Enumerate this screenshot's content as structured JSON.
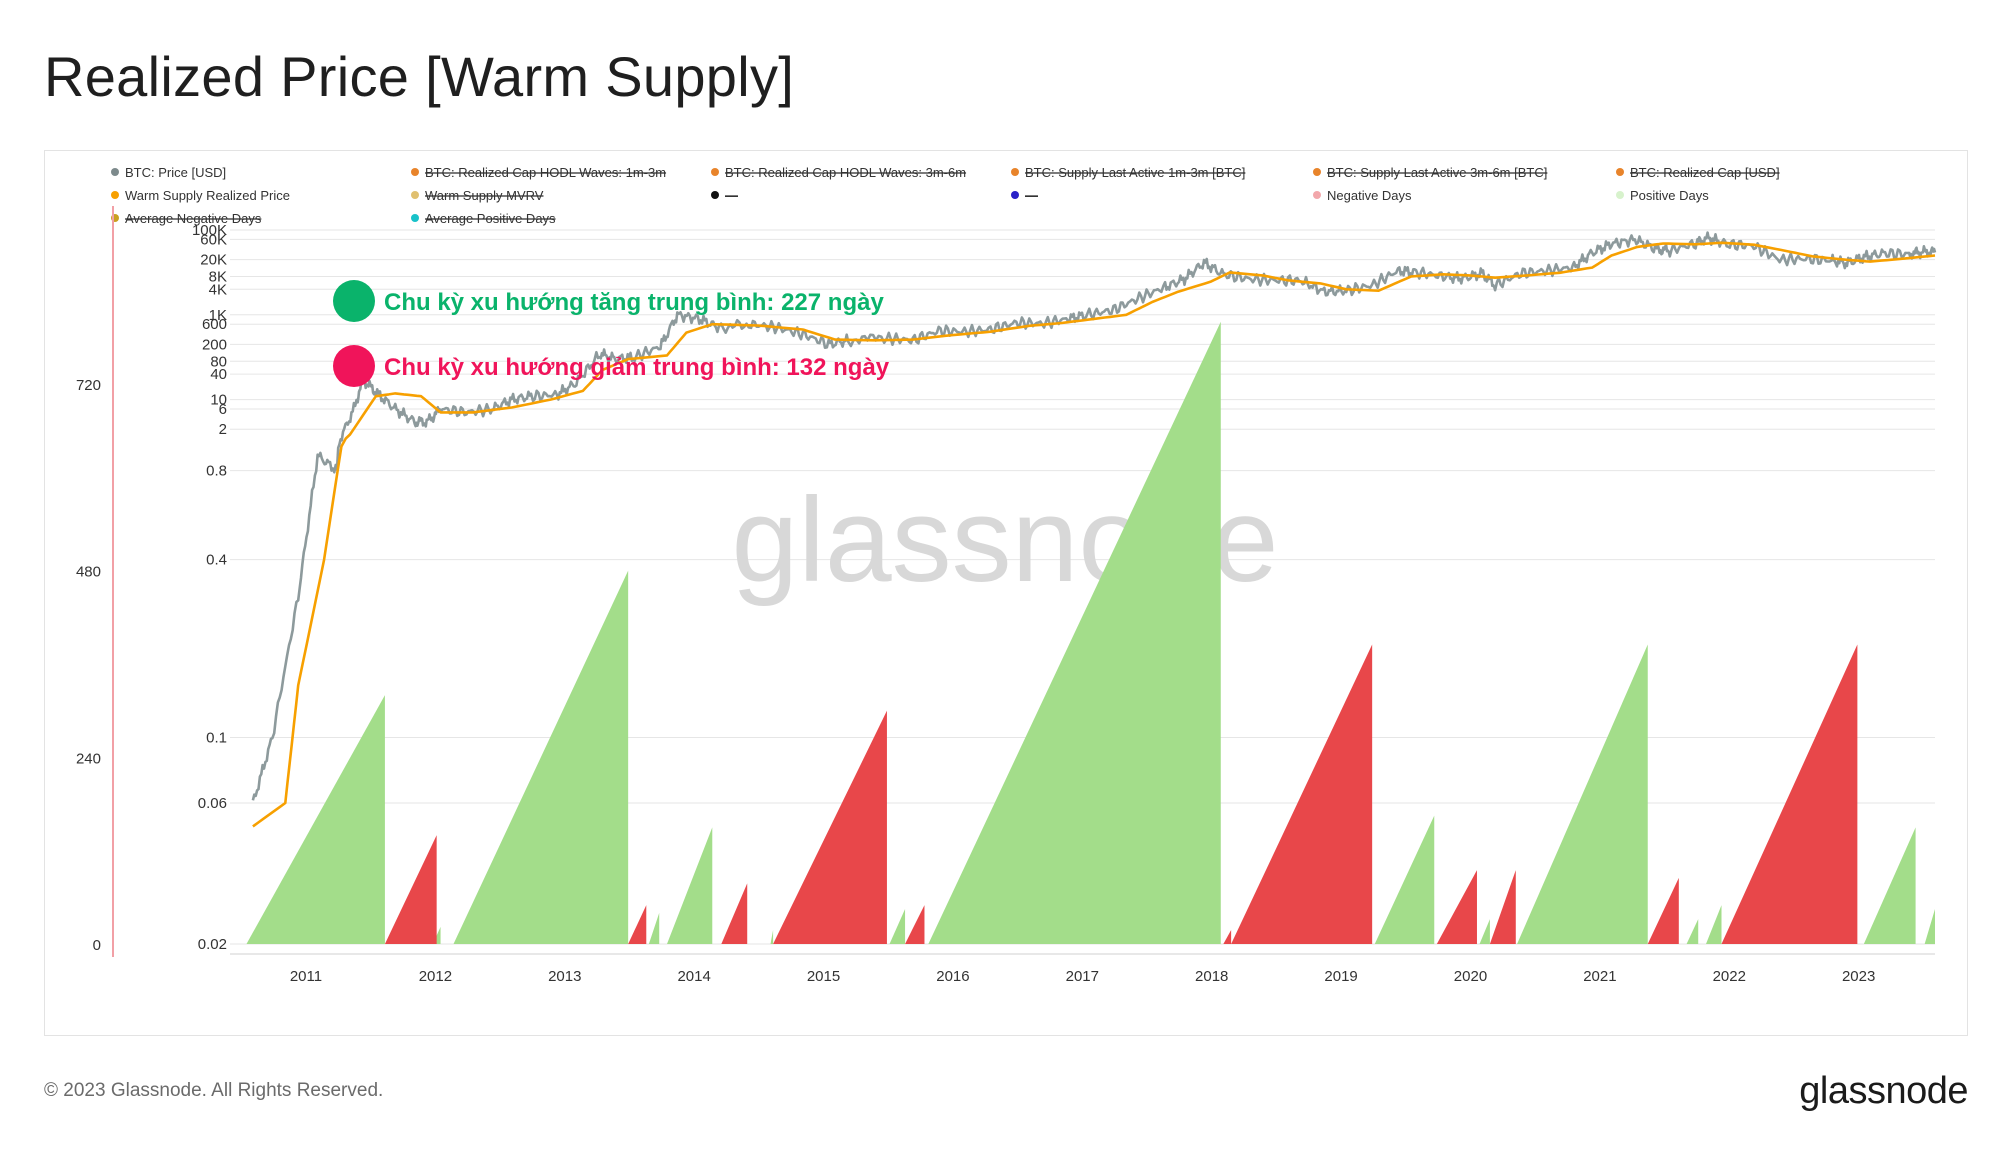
{
  "title": "Realized Price [Warm Supply]",
  "footer": {
    "copyright": "© 2023 Glassnode. All Rights Reserved.",
    "logo": "glassnode"
  },
  "watermark": "glassnode",
  "colors": {
    "price": "#8d9a9c",
    "realized": "#f7a000",
    "positive_fill": "#a3dd8a",
    "negative_fill": "#e8474a",
    "accent_green": "#0ab36b",
    "accent_red": "#f0145a",
    "grid": "#e6e6e6"
  },
  "legend": [
    {
      "label": "BTC: Price [USD]",
      "color": "#7d8a8c",
      "strike": false
    },
    {
      "label": "BTC: Realized Cap HODL Waves: 1m-3m",
      "color": "#e8842b",
      "strike": true
    },
    {
      "label": "BTC: Realized Cap HODL Waves: 3m-6m",
      "color": "#e8842b",
      "strike": true
    },
    {
      "label": "BTC: Supply Last Active 1m-3m [BTC]",
      "color": "#e8842b",
      "strike": true
    },
    {
      "label": "BTC: Supply Last Active 3m-6m [BTC]",
      "color": "#e8842b",
      "strike": true
    },
    {
      "label": "BTC: Realized Cap [USD]",
      "color": "#e8842b",
      "strike": true
    },
    {
      "label": "Warm Supply Realized Price",
      "color": "#f7a000",
      "strike": false
    },
    {
      "label": "Warm Supply MVRV",
      "color": "#e0c070",
      "strike": true
    },
    {
      "label": "—",
      "color": "#111111",
      "strike": true
    },
    {
      "label": "—",
      "color": "#2a22c8",
      "strike": true
    },
    {
      "label": "Negative Days",
      "color": "#f2a7ab",
      "strike": false
    },
    {
      "label": "Positive Days",
      "color": "#d7f2cc",
      "strike": false
    },
    {
      "label": "Average Negative Days",
      "color": "#c9a020",
      "strike": true
    },
    {
      "label": "Average Positive Days",
      "color": "#19c2c9",
      "strike": true
    }
  ],
  "annotations": {
    "uptrend": "Chu kỳ xu hướng tăng trung bình: 227 ngày",
    "downtrend": "Chu kỳ xu hướng giảm trung bình: 132 ngày"
  },
  "chart_data": {
    "type": "line",
    "x_axis": {
      "ticks": [
        "2011",
        "2012",
        "2013",
        "2014",
        "2015",
        "2016",
        "2017",
        "2018",
        "2019",
        "2020",
        "2021",
        "2022",
        "2023"
      ]
    },
    "y_axis_left": {
      "ticks": [
        "100K",
        "60K",
        "20K",
        "8K",
        "4K",
        "1K",
        "600",
        "200",
        "80",
        "40",
        "10",
        "6",
        "2",
        "0.8",
        "0.4",
        "0.1",
        "0.06",
        "0.02"
      ],
      "scale": "log"
    },
    "y_axis_right": {
      "ticks": [
        "720",
        "480",
        "240",
        "0"
      ],
      "range": [
        0,
        1000
      ]
    },
    "series": [
      {
        "name": "BTC: Price [USD]",
        "values": [
          [
            2010.6,
            0.06
          ],
          [
            2010.75,
            0.1
          ],
          [
            2010.95,
            0.3
          ],
          [
            2011.1,
            0.9
          ],
          [
            2011.25,
            0.8
          ],
          [
            2011.38,
            6
          ],
          [
            2011.45,
            30
          ],
          [
            2011.55,
            15
          ],
          [
            2011.7,
            6
          ],
          [
            2011.85,
            3
          ],
          [
            2011.95,
            3
          ],
          [
            2012.05,
            6
          ],
          [
            2012.25,
            5
          ],
          [
            2012.45,
            6
          ],
          [
            2012.6,
            10
          ],
          [
            2012.75,
            12
          ],
          [
            2012.95,
            13
          ],
          [
            2013.1,
            25
          ],
          [
            2013.28,
            120
          ],
          [
            2013.4,
            90
          ],
          [
            2013.55,
            100
          ],
          [
            2013.75,
            180
          ],
          [
            2013.88,
            1000
          ],
          [
            2014.05,
            800
          ],
          [
            2014.2,
            500
          ],
          [
            2014.45,
            600
          ],
          [
            2014.65,
            500
          ],
          [
            2014.85,
            350
          ],
          [
            2015.05,
            200
          ],
          [
            2015.2,
            250
          ],
          [
            2015.5,
            280
          ],
          [
            2015.7,
            250
          ],
          [
            2015.9,
            420
          ],
          [
            2016.1,
            400
          ],
          [
            2016.3,
            450
          ],
          [
            2016.5,
            650
          ],
          [
            2016.7,
            620
          ],
          [
            2016.9,
            800
          ],
          [
            2017.05,
            1000
          ],
          [
            2017.25,
            1300
          ],
          [
            2017.45,
            2500
          ],
          [
            2017.65,
            4500
          ],
          [
            2017.8,
            7000
          ],
          [
            2017.95,
            17000
          ],
          [
            2018.1,
            9000
          ],
          [
            2018.3,
            7000
          ],
          [
            2018.5,
            6500
          ],
          [
            2018.7,
            6400
          ],
          [
            2018.88,
            3500
          ],
          [
            2019.05,
            3700
          ],
          [
            2019.25,
            5000
          ],
          [
            2019.45,
            11000
          ],
          [
            2019.6,
            10000
          ],
          [
            2019.8,
            8000
          ],
          [
            2019.95,
            7200
          ],
          [
            2020.1,
            9500
          ],
          [
            2020.2,
            5000
          ],
          [
            2020.4,
            9500
          ],
          [
            2020.6,
            11000
          ],
          [
            2020.8,
            13000
          ],
          [
            2020.95,
            29000
          ],
          [
            2021.1,
            47000
          ],
          [
            2021.28,
            60000
          ],
          [
            2021.45,
            35000
          ],
          [
            2021.55,
            33000
          ],
          [
            2021.75,
            48000
          ],
          [
            2021.85,
            65000
          ],
          [
            2022.0,
            46000
          ],
          [
            2022.2,
            42000
          ],
          [
            2022.4,
            20000
          ],
          [
            2022.6,
            21000
          ],
          [
            2022.8,
            19000
          ],
          [
            2022.92,
            16500
          ],
          [
            2023.05,
            23000
          ],
          [
            2023.2,
            28000
          ],
          [
            2023.4,
            27000
          ],
          [
            2023.5,
            30500
          ],
          [
            2023.6,
            29500
          ]
        ]
      },
      {
        "name": "Warm Supply Realized Price",
        "values": [
          [
            2010.6,
            0.05
          ],
          [
            2010.85,
            0.06
          ],
          [
            2010.95,
            0.15
          ],
          [
            2011.15,
            0.4
          ],
          [
            2011.35,
            1.5
          ],
          [
            2011.55,
            12
          ],
          [
            2011.7,
            14
          ],
          [
            2011.9,
            12
          ],
          [
            2012.05,
            5
          ],
          [
            2012.3,
            5
          ],
          [
            2012.6,
            6.5
          ],
          [
            2012.9,
            10
          ],
          [
            2013.15,
            16
          ],
          [
            2013.3,
            50
          ],
          [
            2013.5,
            90
          ],
          [
            2013.8,
            110
          ],
          [
            2013.95,
            380
          ],
          [
            2014.15,
            600
          ],
          [
            2014.5,
            560
          ],
          [
            2014.85,
            450
          ],
          [
            2015.1,
            260
          ],
          [
            2015.4,
            250
          ],
          [
            2015.7,
            260
          ],
          [
            2015.95,
            320
          ],
          [
            2016.3,
            400
          ],
          [
            2016.6,
            550
          ],
          [
            2016.85,
            640
          ],
          [
            2017.1,
            800
          ],
          [
            2017.35,
            1000
          ],
          [
            2017.55,
            2000
          ],
          [
            2017.75,
            3500
          ],
          [
            2018.0,
            6000
          ],
          [
            2018.15,
            10000
          ],
          [
            2018.4,
            8500
          ],
          [
            2018.6,
            6500
          ],
          [
            2018.85,
            5500
          ],
          [
            2019.05,
            4000
          ],
          [
            2019.3,
            3700
          ],
          [
            2019.55,
            8000
          ],
          [
            2019.8,
            9000
          ],
          [
            2020.0,
            8500
          ],
          [
            2020.2,
            7500
          ],
          [
            2020.45,
            8500
          ],
          [
            2020.7,
            9800
          ],
          [
            2020.95,
            13000
          ],
          [
            2021.1,
            25000
          ],
          [
            2021.3,
            40000
          ],
          [
            2021.5,
            48000
          ],
          [
            2021.75,
            46000
          ],
          [
            2021.95,
            50000
          ],
          [
            2022.2,
            45000
          ],
          [
            2022.45,
            32000
          ],
          [
            2022.65,
            24000
          ],
          [
            2022.9,
            20000
          ],
          [
            2023.1,
            18000
          ],
          [
            2023.35,
            21000
          ],
          [
            2023.6,
            25000
          ]
        ]
      },
      {
        "name": "Positive Days",
        "values": [
          [
            2010.55,
            2011.62,
            320
          ],
          [
            2011.99,
            2012.05,
            22
          ],
          [
            2012.15,
            2013.5,
            480
          ],
          [
            2013.66,
            2013.74,
            40
          ],
          [
            2013.8,
            2014.15,
            150
          ],
          [
            2014.6,
            2014.62,
            18
          ],
          [
            2015.52,
            2015.64,
            45
          ],
          [
            2015.82,
            2018.08,
            800
          ],
          [
            2019.27,
            2019.73,
            165
          ],
          [
            2020.08,
            2020.16,
            32
          ],
          [
            2020.37,
            2021.38,
            385
          ],
          [
            2021.68,
            2021.77,
            32
          ],
          [
            2021.83,
            2021.95,
            50
          ],
          [
            2023.05,
            2023.45,
            150
          ],
          [
            2023.52,
            2023.6,
            45
          ]
        ]
      },
      {
        "name": "Negative Days",
        "values": [
          [
            2011.62,
            2012.02,
            140
          ],
          [
            2013.5,
            2013.64,
            50
          ],
          [
            2014.22,
            2014.42,
            78
          ],
          [
            2014.62,
            2015.5,
            300
          ],
          [
            2015.64,
            2015.79,
            50
          ],
          [
            2018.1,
            2018.16,
            18
          ],
          [
            2018.16,
            2019.25,
            385
          ],
          [
            2019.75,
            2020.06,
            95
          ],
          [
            2020.16,
            2020.36,
            95
          ],
          [
            2021.38,
            2021.62,
            85
          ],
          [
            2021.95,
            2023.0,
            385
          ]
        ]
      }
    ]
  }
}
